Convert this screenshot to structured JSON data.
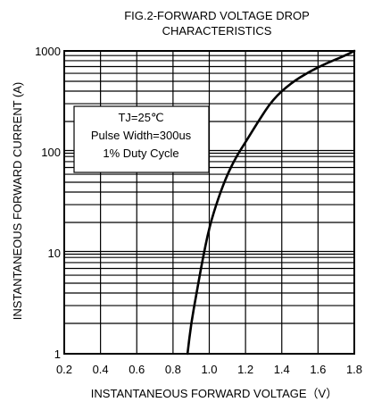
{
  "chart_data": {
    "type": "line",
    "title_lines": [
      "FIG.2-FORWARD VOLTAGE DROP",
      "CHARACTERISTICS"
    ],
    "xlabel": "INSTANTANEOUS FORWARD VOLTAGE（V）",
    "ylabel": "INSTANTANEOUS FORWARD CURRENT (A)",
    "xlim": [
      0.2,
      1.8
    ],
    "ylim": [
      1,
      1000
    ],
    "y_scale": "log",
    "grid": true,
    "x_ticks": [
      "0.2",
      "0.4",
      "0.6",
      "0.8",
      "1.0",
      "1.2",
      "1.4",
      "1.6",
      "1.8"
    ],
    "y_ticks": [
      "1",
      "10",
      "100",
      "1000"
    ],
    "legend_box_lines": [
      "TJ=25℃",
      "Pulse Width=300us",
      "1% Duty Cycle"
    ],
    "series": [
      {
        "x": [
          0.88,
          0.9,
          0.93,
          0.96,
          1.0,
          1.05,
          1.1,
          1.15,
          1.2,
          1.27,
          1.35,
          1.45,
          1.55,
          1.65,
          1.75,
          1.8
        ],
        "y": [
          1,
          2,
          4,
          8,
          18,
          35,
          60,
          90,
          125,
          200,
          330,
          480,
          620,
          760,
          900,
          1000
        ]
      }
    ]
  }
}
